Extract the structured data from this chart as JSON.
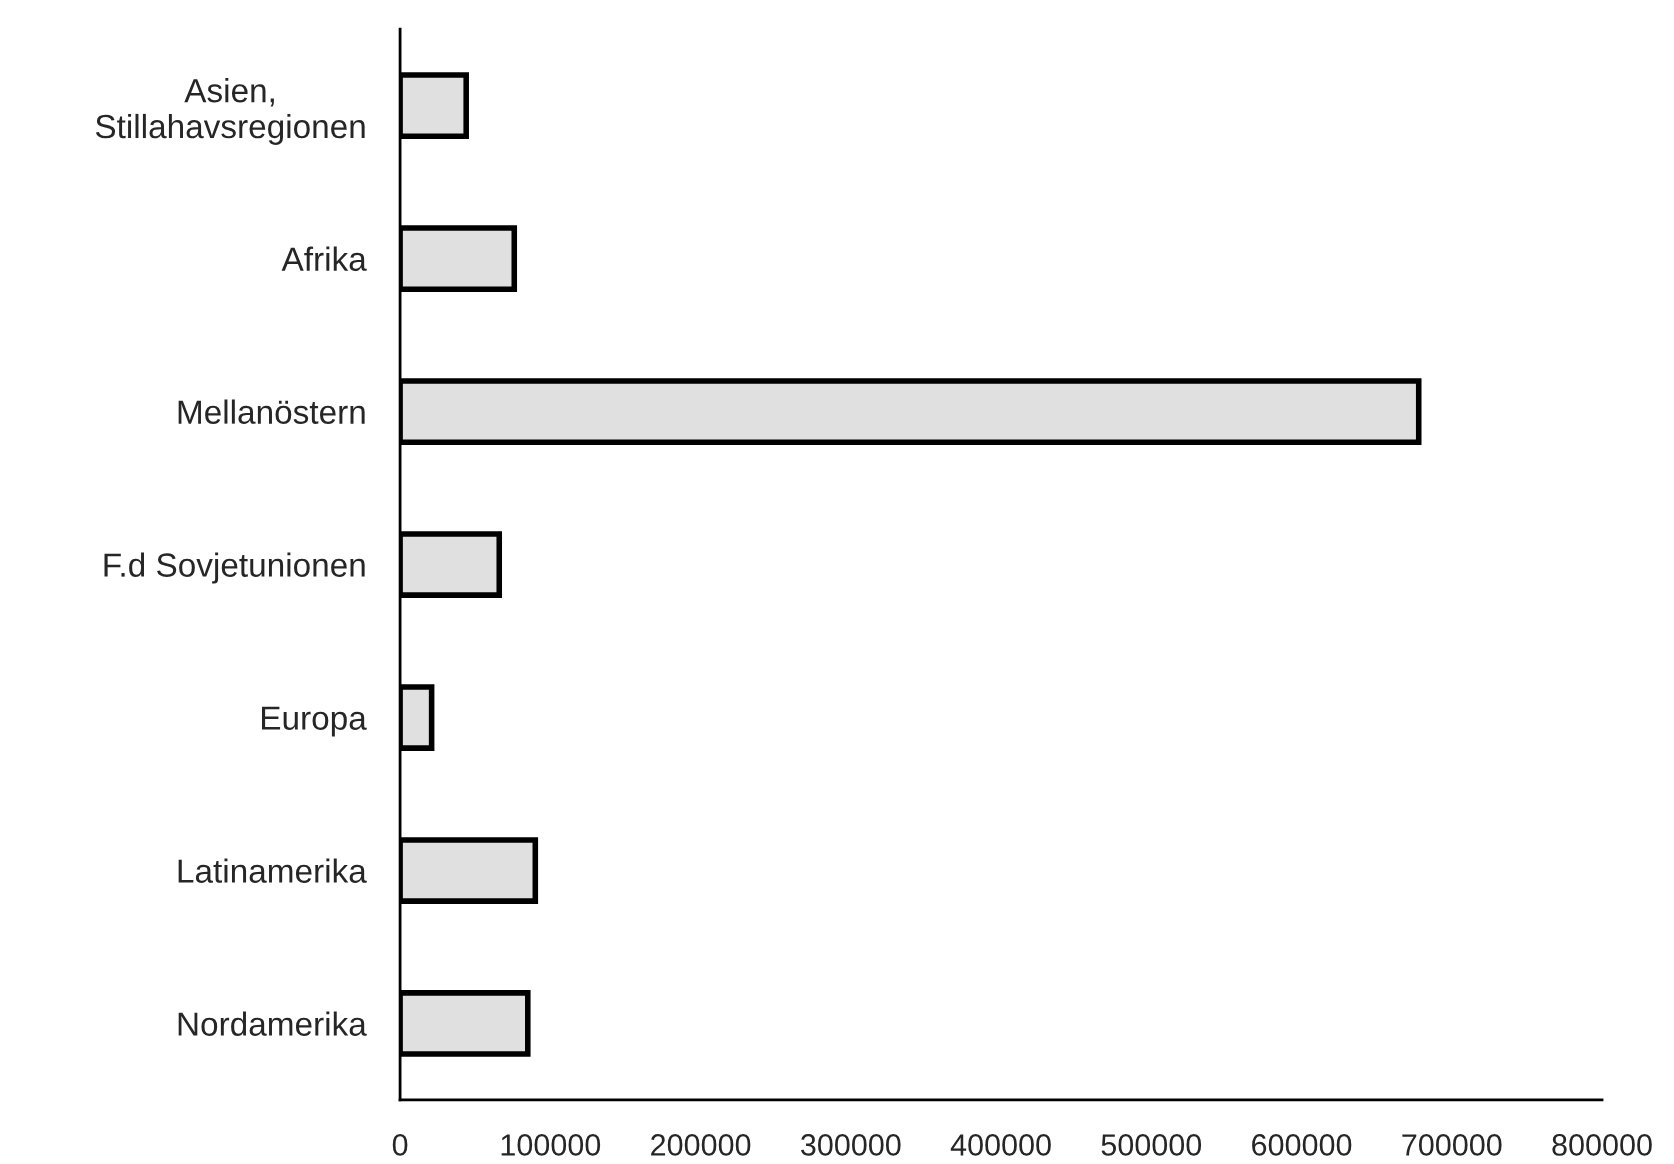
{
  "chart_data": {
    "type": "bar",
    "orientation": "horizontal",
    "categories": [
      "Asien,\nStillahavsregionen",
      "Afrika",
      "Mellanöstern",
      "F.d Sovjetunionen",
      "Europa",
      "Latinamerika",
      "Nordamerika"
    ],
    "values": [
      44000,
      76000,
      678000,
      66000,
      21000,
      90000,
      85000
    ],
    "color": "#e0e0e0",
    "xlim": [
      0,
      800000
    ],
    "xticks": [
      0,
      100000,
      200000,
      300000,
      400000,
      500000,
      600000,
      700000,
      800000
    ],
    "grid": false,
    "legend": false
  }
}
